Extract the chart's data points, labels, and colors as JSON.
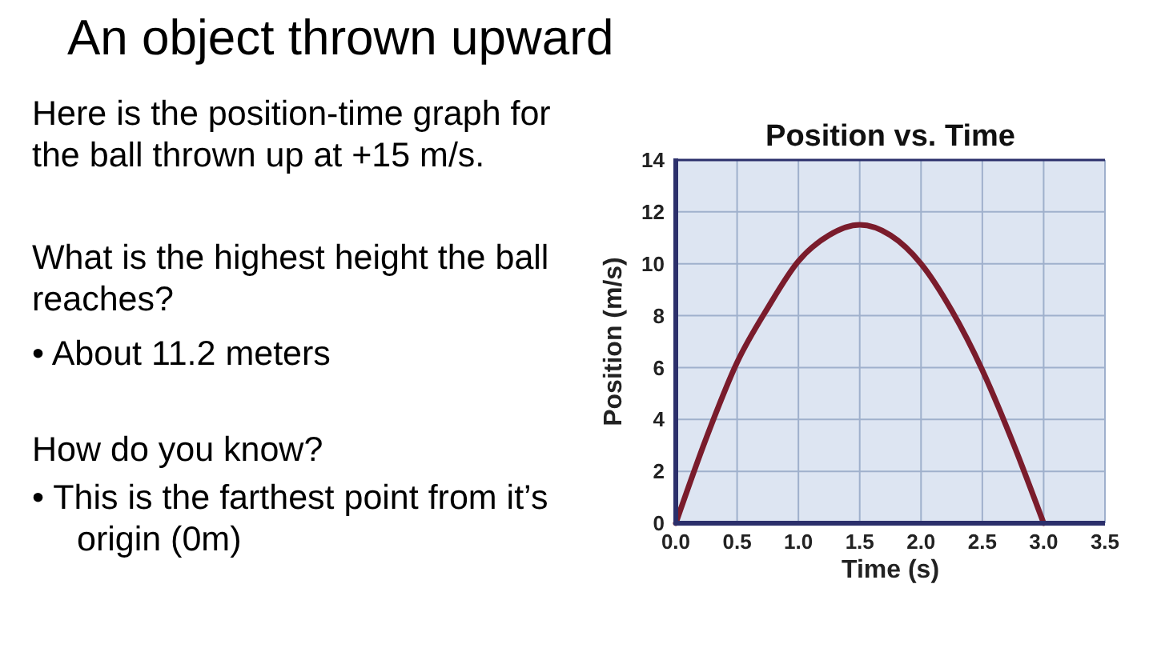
{
  "chart_data": {
    "type": "line",
    "title": "Position vs. Time",
    "subtitle": "An object thrown upward",
    "xlabel": "Time (s)",
    "ylabel": "Position (m/s)",
    "annotations": [
      "Here is the position-time graph for the ball thrown up at +15 m/s.",
      "What is the highest height the ball reaches?",
      "• About 11.2 meters",
      "How do you know?",
      "• This is the farthest point from it’s origin (0m)"
    ],
    "x": [
      0,
      0.25,
      0.5,
      0.75,
      1.0,
      1.25,
      1.5,
      1.75,
      2.0,
      2.25,
      2.5,
      2.75,
      3.0
    ],
    "series": [
      {
        "color": "#7a1c2c",
        "values": [
          0,
          3.3,
          6.2,
          8.3,
          10.1,
          11.1,
          11.5,
          11.1,
          10.0,
          8.2,
          5.9,
          3.1,
          0
        ]
      }
    ],
    "xlim": [
      0,
      3.5
    ],
    "xticks": [
      {
        "value": 0,
        "label": "0.0"
      },
      {
        "value": 0.5,
        "label": "0.5"
      },
      {
        "value": 1,
        "label": "1.0"
      },
      {
        "value": 1.5,
        "label": "1.5"
      },
      {
        "value": 2,
        "label": "2.0"
      },
      {
        "value": 2.5,
        "label": "2.5"
      },
      {
        "value": 3,
        "label": "3.0"
      },
      {
        "value": 3.5,
        "label": "3.5"
      }
    ],
    "ylim": [
      0,
      14
    ],
    "yticks": [
      0,
      2,
      4,
      6,
      8,
      10,
      12,
      14
    ],
    "grid": true,
    "marker": "none",
    "line_style": "solid"
  }
}
